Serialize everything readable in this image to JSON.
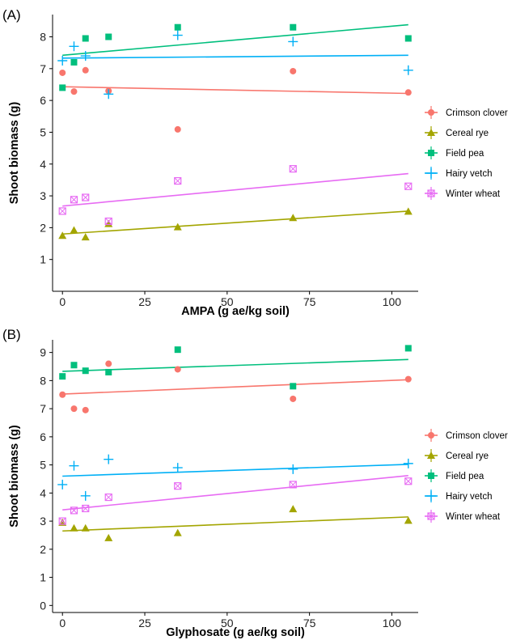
{
  "chart_data": [
    {
      "type": "scatter",
      "panel_label": "(A)",
      "xlabel": "AMPA (g ae/kg soil)",
      "ylabel": "Shoot biomass (g)",
      "xlim": [
        -3,
        108
      ],
      "ylim": [
        0,
        8.7
      ],
      "xticks": [
        0,
        25,
        50,
        75,
        100
      ],
      "yticks": [
        1,
        2,
        3,
        4,
        5,
        6,
        7,
        8
      ],
      "grid": false,
      "legend_position": "right",
      "series": [
        {
          "name": "Crimson clover",
          "color": "#F8766D",
          "marker": "circle",
          "x": [
            0,
            3.5,
            7,
            14,
            35,
            70,
            105
          ],
          "y": [
            6.87,
            6.28,
            6.95,
            6.3,
            5.09,
            6.92,
            6.25
          ],
          "fit": [
            6.43,
            6.22
          ]
        },
        {
          "name": "Cereal rye",
          "color": "#A3A500",
          "marker": "triangle",
          "x": [
            0,
            3.5,
            7,
            14,
            35,
            70,
            105
          ],
          "y": [
            1.75,
            1.92,
            1.7,
            2.12,
            2.02,
            2.31,
            2.51
          ],
          "fit": [
            1.8,
            2.52
          ]
        },
        {
          "name": "Field pea",
          "color": "#00BF7D",
          "marker": "square",
          "x": [
            0,
            3.5,
            7,
            14,
            35,
            70,
            105
          ],
          "y": [
            6.4,
            7.2,
            7.95,
            8.0,
            8.3,
            8.3,
            7.95
          ],
          "fit": [
            7.42,
            8.38
          ]
        },
        {
          "name": "Hairy vetch",
          "color": "#00B0F6",
          "marker": "plus",
          "x": [
            0,
            3.5,
            7,
            14,
            35,
            70,
            105
          ],
          "y": [
            7.25,
            7.7,
            7.4,
            6.2,
            8.05,
            7.85,
            6.95
          ],
          "fit": [
            7.33,
            7.42
          ]
        },
        {
          "name": "Winter wheat",
          "color": "#E76BF3",
          "marker": "square-x",
          "x": [
            0,
            3.5,
            7,
            14,
            35,
            70,
            105
          ],
          "y": [
            2.52,
            2.88,
            2.95,
            2.2,
            3.47,
            3.85,
            3.3
          ],
          "fit": [
            2.68,
            3.7
          ]
        }
      ]
    },
    {
      "type": "scatter",
      "panel_label": "(B)",
      "xlabel": "Glyphosate (g ae/kg soil)",
      "ylabel": "Shoot biomass (g)",
      "xlim": [
        -3,
        108
      ],
      "ylim": [
        -0.25,
        9.45
      ],
      "xticks": [
        0,
        25,
        50,
        75,
        100
      ],
      "yticks": [
        0,
        1,
        2,
        3,
        4,
        5,
        6,
        7,
        8,
        9
      ],
      "grid": false,
      "legend_position": "right",
      "series": [
        {
          "name": "Crimson clover",
          "color": "#F8766D",
          "marker": "circle",
          "x": [
            0,
            3.5,
            7,
            14,
            35,
            70,
            105
          ],
          "y": [
            7.5,
            7.0,
            6.95,
            8.6,
            8.4,
            7.35,
            8.05
          ],
          "fit": [
            7.52,
            8.03
          ]
        },
        {
          "name": "Cereal rye",
          "color": "#A3A500",
          "marker": "triangle",
          "x": [
            0,
            3.5,
            7,
            14,
            35,
            70,
            105
          ],
          "y": [
            2.95,
            2.75,
            2.75,
            2.4,
            2.58,
            3.43,
            3.02
          ],
          "fit": [
            2.65,
            3.15
          ]
        },
        {
          "name": "Field pea",
          "color": "#00BF7D",
          "marker": "square",
          "x": [
            0,
            3.5,
            7,
            14,
            35,
            70,
            105
          ],
          "y": [
            8.15,
            8.55,
            8.35,
            8.3,
            9.1,
            7.8,
            9.15
          ],
          "fit": [
            8.33,
            8.75
          ]
        },
        {
          "name": "Hairy vetch",
          "color": "#00B0F6",
          "marker": "plus",
          "x": [
            0,
            3.5,
            7,
            14,
            35,
            70,
            105
          ],
          "y": [
            4.3,
            4.97,
            3.9,
            5.2,
            4.9,
            4.85,
            5.05
          ],
          "fit": [
            4.6,
            5.02
          ]
        },
        {
          "name": "Winter wheat",
          "color": "#E76BF3",
          "marker": "square-x",
          "x": [
            0,
            3.5,
            7,
            14,
            35,
            70,
            105
          ],
          "y": [
            3.0,
            3.38,
            3.45,
            3.85,
            4.25,
            4.3,
            4.42
          ],
          "fit": [
            3.4,
            4.62
          ]
        }
      ]
    }
  ]
}
